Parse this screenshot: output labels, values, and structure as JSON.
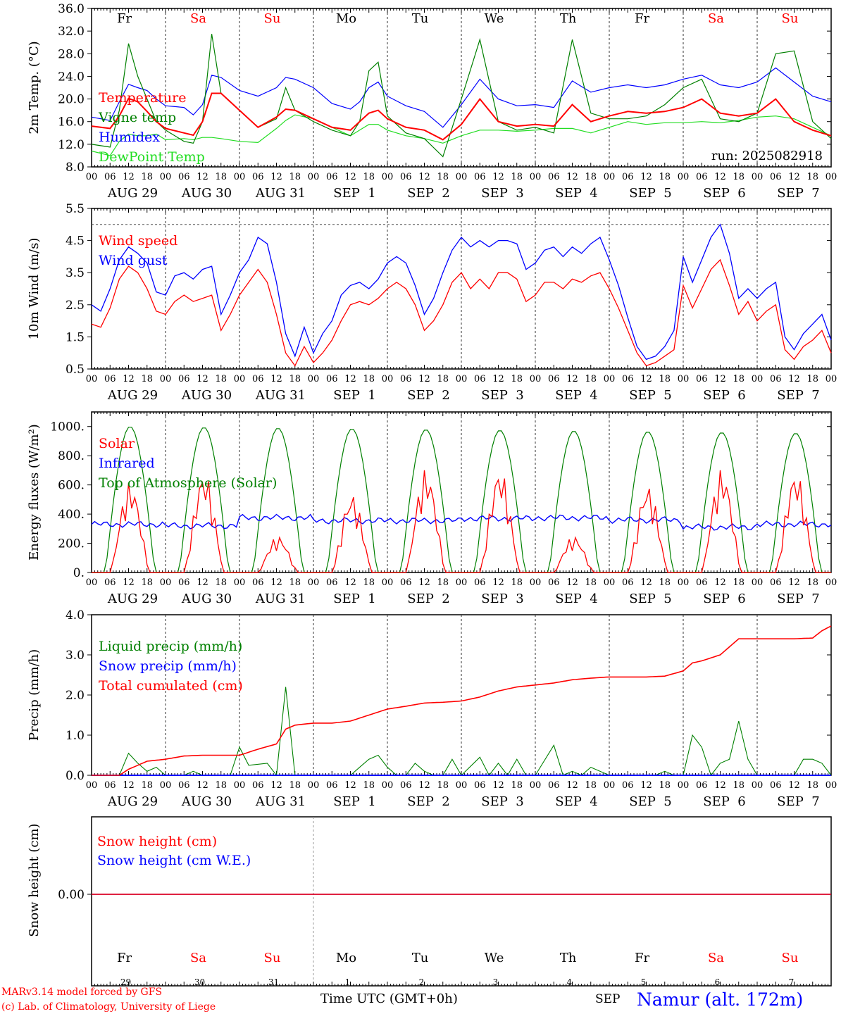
{
  "meta": {
    "run_label": "run: 2025082918",
    "credit_line1": "MARv3.14 model forced by GFS",
    "credit_line2": "(c) Lab. of Climatology, University of Liege",
    "xaxis_title": "Time UTC (GMT+0h)",
    "month_label": "SEP",
    "station": "Namur (alt. 172m)"
  },
  "colors": {
    "red": "#ff0000",
    "green": "#008000",
    "blue": "#0000ff",
    "lightgreen": "#22dd22",
    "frame": "#000000"
  },
  "days": {
    "weekdays": [
      "Fr",
      "Sa",
      "Su",
      "Mo",
      "Tu",
      "We",
      "Th",
      "Fr",
      "Sa",
      "Su"
    ],
    "weekend": [
      false,
      true,
      true,
      false,
      false,
      false,
      false,
      false,
      true,
      true
    ],
    "dates": [
      "AUG 29",
      "AUG 30",
      "AUG 31",
      "SEP  1",
      "SEP  2",
      "SEP  3",
      "SEP  4",
      "SEP  5",
      "SEP  6",
      "SEP  7"
    ],
    "day_numbers": [
      "29",
      "30",
      "31",
      "1",
      "2",
      "3",
      "4",
      "5",
      "6",
      "7"
    ],
    "hour_ticks": [
      "00",
      "06",
      "12",
      "18"
    ],
    "final_hour": "00"
  },
  "chart_data": [
    {
      "type": "line",
      "ylabel": "2m Temp. (°C)",
      "ylim": [
        8,
        36
      ],
      "yticks": [
        "8.0",
        "12.0",
        "16.0",
        "20.0",
        "24.0",
        "28.0",
        "32.0",
        "36.0"
      ],
      "x_hours": [
        0,
        6,
        9,
        12,
        15,
        18,
        21,
        24,
        30,
        33,
        36,
        39,
        42,
        48,
        54,
        60,
        63,
        66,
        72,
        78,
        84,
        87,
        90,
        93,
        96,
        102,
        108,
        114,
        120,
        126,
        132,
        138,
        144,
        150,
        156,
        162,
        168,
        174,
        180,
        186,
        192,
        198,
        204,
        210,
        216,
        222,
        228,
        234,
        240
      ],
      "series": [
        {
          "name": "Temperature",
          "color": "red",
          "values": [
            15.2,
            14.8,
            17,
            20.1,
            19.5,
            17.8,
            16,
            14.8,
            14,
            13.6,
            16,
            21,
            21,
            18,
            15,
            16.8,
            18.2,
            18,
            16.5,
            15,
            14.5,
            16,
            17.5,
            18,
            16.5,
            15,
            14.5,
            12.8,
            15.5,
            20,
            16,
            15.2,
            15.5,
            15.2,
            19,
            16,
            17,
            17.8,
            17.5,
            17.8,
            18.5,
            20,
            17.5,
            17,
            17.5,
            20,
            16,
            14.5,
            13.5
          ]
        },
        {
          "name": "Vigne temp",
          "color": "green",
          "values": [
            12,
            11.5,
            18,
            29.8,
            24,
            20,
            16,
            14.5,
            12.5,
            12.2,
            16,
            31.5,
            21,
            18,
            15,
            16.5,
            22,
            18,
            16,
            14.5,
            13.5,
            16,
            25,
            26.5,
            17,
            14,
            13,
            9.8,
            20,
            30.5,
            16,
            14.5,
            15,
            14,
            30.5,
            17.5,
            16.5,
            16.5,
            17,
            19,
            22,
            23.5,
            16.5,
            16,
            17.5,
            28,
            28.5,
            16,
            13
          ]
        },
        {
          "name": "Humidex",
          "color": "blue",
          "values": [
            16.8,
            16.2,
            19.5,
            22.6,
            22,
            21.5,
            20,
            18.8,
            18.5,
            17.2,
            19,
            24.2,
            23.8,
            21.5,
            20.5,
            22,
            23.8,
            23.5,
            22,
            19.2,
            18.2,
            19.5,
            22,
            23,
            20.5,
            18.8,
            17.8,
            15,
            19,
            23.5,
            20,
            18.8,
            19,
            18.5,
            23.2,
            21.2,
            22,
            22.5,
            22,
            22.5,
            23.5,
            24.2,
            22.5,
            22,
            23,
            25.5,
            23,
            20.5,
            19.5
          ]
        },
        {
          "name": "DewPoint Temp",
          "color": "lightgreen",
          "values": [
            10.8,
            10,
            12.5,
            13.8,
            13.5,
            13.5,
            13.8,
            12.8,
            13,
            12.8,
            13.2,
            13.2,
            13,
            12.5,
            12.3,
            14.8,
            16.2,
            17.2,
            16.5,
            15,
            13.5,
            14.5,
            15.5,
            15.5,
            14.5,
            13.5,
            13,
            12.2,
            13.5,
            14.5,
            14.5,
            14.3,
            14.5,
            14.8,
            14.8,
            14,
            15,
            16,
            15.5,
            15.8,
            15.8,
            16,
            15.8,
            16.2,
            16.8,
            17,
            16.5,
            15,
            13.5
          ]
        }
      ]
    },
    {
      "type": "line",
      "ylabel": "10m Wind (m/s)",
      "ylim": [
        0.5,
        5.5
      ],
      "yticks": [
        "0.5",
        "1.5",
        "2.5",
        "3.5",
        "4.5",
        "5.5"
      ],
      "x_hours": [
        0,
        3,
        6,
        9,
        12,
        15,
        18,
        21,
        24,
        27,
        30,
        33,
        36,
        39,
        42,
        45,
        48,
        51,
        54,
        57,
        60,
        63,
        66,
        69,
        72,
        75,
        78,
        81,
        84,
        87,
        90,
        93,
        96,
        99,
        102,
        105,
        108,
        111,
        114,
        117,
        120,
        123,
        126,
        129,
        132,
        135,
        138,
        141,
        144,
        147,
        150,
        153,
        156,
        159,
        162,
        165,
        168,
        171,
        174,
        177,
        180,
        183,
        186,
        189,
        192,
        195,
        198,
        201,
        204,
        207,
        210,
        213,
        216,
        219,
        222,
        225,
        228,
        231,
        234,
        237,
        240
      ],
      "series": [
        {
          "name": "Wind speed",
          "color": "red",
          "values": [
            1.9,
            1.8,
            2.4,
            3.3,
            3.7,
            3.5,
            3,
            2.3,
            2.2,
            2.6,
            2.8,
            2.6,
            2.7,
            2.8,
            1.7,
            2.2,
            2.8,
            3.2,
            3.6,
            3.2,
            2.2,
            1,
            0.6,
            1.2,
            0.7,
            1,
            1.4,
            2,
            2.5,
            2.6,
            2.5,
            2.7,
            3,
            3.2,
            3,
            2.5,
            1.7,
            2,
            2.5,
            3.2,
            3.5,
            3,
            3.3,
            3,
            3.5,
            3.5,
            3.3,
            2.6,
            2.8,
            3.2,
            3.2,
            3,
            3.3,
            3.2,
            3.4,
            3.5,
            3,
            2.4,
            1.7,
            1,
            0.6,
            0.7,
            0.9,
            1.1,
            3.1,
            2.4,
            3,
            3.6,
            3.9,
            3.1,
            2.2,
            2.6,
            2,
            2.3,
            2.5,
            1.1,
            0.8,
            1.2,
            1.4,
            1.7,
            1
          ]
        },
        {
          "name": "Wind gust",
          "color": "blue",
          "values": [
            2.5,
            2.3,
            3,
            3.9,
            4.3,
            4.1,
            3.8,
            2.9,
            2.8,
            3.4,
            3.5,
            3.3,
            3.6,
            3.7,
            2.2,
            2.8,
            3.5,
            3.9,
            4.6,
            4.4,
            3.2,
            1.6,
            0.9,
            1.8,
            1,
            1.6,
            2,
            2.8,
            3.1,
            3.2,
            3,
            3.3,
            3.8,
            4,
            3.8,
            3.1,
            2.2,
            2.7,
            3.5,
            4.2,
            4.6,
            4.3,
            4.5,
            4.3,
            4.5,
            4.5,
            4.4,
            3.6,
            3.8,
            4.2,
            4.3,
            4,
            4.3,
            4.1,
            4.4,
            4.6,
            3.9,
            3.1,
            2.1,
            1.2,
            0.8,
            0.9,
            1.2,
            1.7,
            4,
            3.2,
            3.9,
            4.6,
            5,
            4.1,
            2.7,
            3,
            2.7,
            3,
            3.2,
            1.5,
            1.1,
            1.6,
            1.9,
            2.2,
            1.4
          ]
        }
      ]
    },
    {
      "type": "line",
      "ylabel": "Energy fluxes (W/m²)",
      "ylim": [
        0,
        1100
      ],
      "yticks": [
        "0.",
        "200.",
        "400.",
        "600.",
        "800.",
        "1000."
      ],
      "series": [
        {
          "name": "Solar",
          "color": "red",
          "daily_peaks": [
            620,
            690,
            250,
            540,
            710,
            710,
            250,
            600,
            710,
            690
          ]
        },
        {
          "name": "Infrared",
          "color": "blue",
          "daily_means": [
            330,
            320,
            375,
            355,
            355,
            370,
            375,
            360,
            310,
            330
          ]
        },
        {
          "name": "Top of Atmosphere (Solar)",
          "color": "green",
          "daily_peaks": [
            1000,
            995,
            990,
            985,
            980,
            975,
            970,
            965,
            960,
            955
          ]
        }
      ]
    },
    {
      "type": "line",
      "ylabel": "Precip (mm/h)",
      "ylim": [
        0,
        4
      ],
      "yticks": [
        "0.0",
        "1.0",
        "2.0",
        "3.0",
        "4.0"
      ],
      "series": [
        {
          "name": "Liquid precip (mm/h)",
          "color": "green",
          "x_hours": [
            0,
            9,
            12,
            15,
            18,
            21,
            24,
            30,
            33,
            36,
            45,
            48,
            51,
            57,
            60,
            63,
            66,
            69,
            72,
            78,
            84,
            87,
            90,
            93,
            96,
            99,
            102,
            105,
            108,
            111,
            114,
            117,
            120,
            126,
            129,
            132,
            135,
            138,
            141,
            144,
            150,
            153,
            156,
            159,
            162,
            168,
            174,
            180,
            183,
            186,
            189,
            192,
            195,
            198,
            201,
            204,
            207,
            210,
            213,
            216,
            222,
            228,
            231,
            234,
            237,
            240
          ],
          "values": [
            0,
            0,
            0.55,
            0.3,
            0.1,
            0.2,
            0,
            0,
            0.1,
            0,
            0,
            0.7,
            0.25,
            0.3,
            0,
            2.2,
            0,
            0,
            0,
            0,
            0,
            0.2,
            0.4,
            0.5,
            0.2,
            0,
            0,
            0.3,
            0.1,
            0,
            0,
            0.4,
            0,
            0.45,
            0,
            0.3,
            0,
            0.4,
            0,
            0,
            0.75,
            0,
            0.1,
            0,
            0.2,
            0,
            0,
            0,
            0,
            0.1,
            0,
            0,
            1,
            0.7,
            0,
            0.3,
            0.4,
            1.35,
            0.4,
            0,
            0,
            0,
            0.4,
            0.4,
            0.3,
            0
          ]
        },
        {
          "name": "Snow precip (mm/h)",
          "color": "blue",
          "x_hours": [
            0,
            240
          ],
          "values": [
            0,
            0
          ]
        },
        {
          "name": "Total cumulated (cm)",
          "color": "red",
          "x_hours": [
            0,
            9,
            12,
            18,
            24,
            30,
            36,
            48,
            54,
            60,
            63,
            66,
            72,
            78,
            84,
            90,
            96,
            102,
            108,
            114,
            120,
            126,
            132,
            138,
            144,
            150,
            156,
            162,
            168,
            174,
            180,
            186,
            192,
            195,
            198,
            204,
            210,
            216,
            222,
            228,
            234,
            237,
            240
          ],
          "values": [
            0,
            0,
            0.15,
            0.35,
            0.4,
            0.48,
            0.5,
            0.5,
            0.65,
            0.78,
            1.15,
            1.25,
            1.3,
            1.3,
            1.35,
            1.5,
            1.65,
            1.72,
            1.8,
            1.82,
            1.85,
            1.95,
            2.1,
            2.2,
            2.25,
            2.3,
            2.38,
            2.42,
            2.45,
            2.45,
            2.45,
            2.47,
            2.6,
            2.8,
            2.85,
            3.0,
            3.4,
            3.4,
            3.4,
            3.4,
            3.42,
            3.6,
            3.72
          ]
        }
      ]
    },
    {
      "type": "line",
      "ylabel": "Snow height (cm)",
      "yticks": [
        "0.00"
      ],
      "series": [
        {
          "name": "Snow height (cm)",
          "color": "red",
          "values": [
            0,
            0
          ]
        },
        {
          "name": "Snow height (cm W.E.)",
          "color": "blue",
          "values": [
            0,
            0
          ]
        }
      ]
    }
  ]
}
